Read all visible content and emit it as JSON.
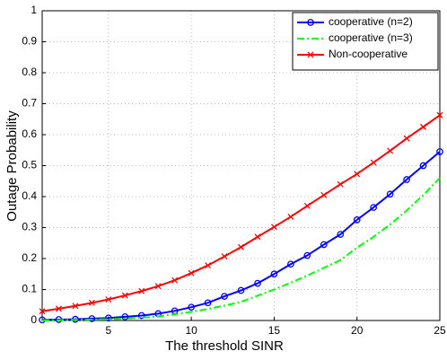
{
  "chart_data": {
    "type": "line",
    "x_label": "The threshold SINR",
    "y_label": "Outage Probability",
    "x": [
      1,
      2,
      3,
      4,
      5,
      6,
      7,
      8,
      9,
      10,
      11,
      12,
      13,
      14,
      15,
      16,
      17,
      18,
      19,
      20,
      21,
      22,
      23,
      24,
      25
    ],
    "series": [
      {
        "name": "cooperative (n=2)",
        "color": "#0000ff",
        "marker": "circle",
        "dash": "solid",
        "values": [
          0.002,
          0.003,
          0.004,
          0.006,
          0.008,
          0.012,
          0.016,
          0.022,
          0.031,
          0.043,
          0.057,
          0.078,
          0.097,
          0.12,
          0.15,
          0.182,
          0.21,
          0.245,
          0.278,
          0.325,
          0.365,
          0.408,
          0.455,
          0.5,
          0.545
        ]
      },
      {
        "name": "cooperative (n=3)",
        "color": "#00ff00",
        "marker": "none",
        "dash": "dashdot",
        "values": [
          0.0005,
          0.001,
          0.002,
          0.003,
          0.004,
          0.006,
          0.009,
          0.013,
          0.02,
          0.028,
          0.037,
          0.048,
          0.06,
          0.08,
          0.1,
          0.122,
          0.145,
          0.17,
          0.195,
          0.235,
          0.27,
          0.31,
          0.355,
          0.405,
          0.46
        ]
      },
      {
        "name": "Non-cooperative",
        "color": "#ff0000",
        "marker": "x",
        "dash": "solid",
        "values": [
          0.03,
          0.038,
          0.047,
          0.057,
          0.068,
          0.081,
          0.095,
          0.111,
          0.13,
          0.153,
          0.178,
          0.207,
          0.237,
          0.27,
          0.302,
          0.335,
          0.37,
          0.405,
          0.44,
          0.473,
          0.51,
          0.548,
          0.588,
          0.625,
          0.663
        ]
      }
    ],
    "xlim": [
      1,
      25
    ],
    "xticks": [
      5,
      10,
      15,
      20,
      25
    ],
    "ylim": [
      0,
      1
    ],
    "yticks": [
      0,
      0.1,
      0.2,
      0.3,
      0.4,
      0.5,
      0.6,
      0.7,
      0.8,
      0.9,
      1
    ],
    "grid": true,
    "legend": "top-right"
  }
}
